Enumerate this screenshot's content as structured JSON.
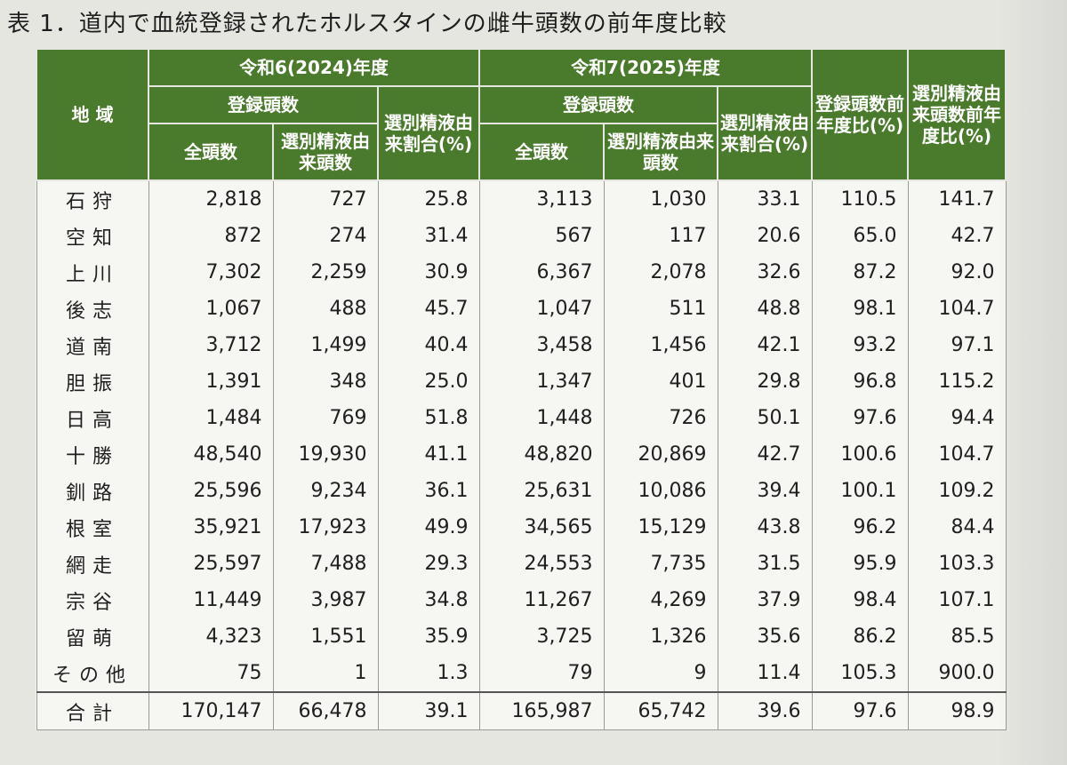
{
  "title": "表 1．道内で血統登録されたホルスタインの雌牛頭数の前年度比較",
  "headers": {
    "region": "地 域",
    "year1": "令和6(2024)年度",
    "year2": "令和7(2025)年度",
    "registered": "登録頭数",
    "total_head": "全頭数",
    "sexed_head": "選別精液由来頭数",
    "sexed_ratio": "選別精液由来割合(%)",
    "reg_yoy": "登録頭数前年度比(%)",
    "sexed_yoy": "選別精液由来頭数前年度比(%)"
  },
  "rows": [
    {
      "region": "石狩",
      "t24": "2,818",
      "s24": "727",
      "r24": "25.8",
      "t25": "3,113",
      "s25": "1,030",
      "r25": "33.1",
      "ry": "110.5",
      "sy": "141.7"
    },
    {
      "region": "空知",
      "t24": "872",
      "s24": "274",
      "r24": "31.4",
      "t25": "567",
      "s25": "117",
      "r25": "20.6",
      "ry": "65.0",
      "sy": "42.7"
    },
    {
      "region": "上川",
      "t24": "7,302",
      "s24": "2,259",
      "r24": "30.9",
      "t25": "6,367",
      "s25": "2,078",
      "r25": "32.6",
      "ry": "87.2",
      "sy": "92.0"
    },
    {
      "region": "後志",
      "t24": "1,067",
      "s24": "488",
      "r24": "45.7",
      "t25": "1,047",
      "s25": "511",
      "r25": "48.8",
      "ry": "98.1",
      "sy": "104.7"
    },
    {
      "region": "道南",
      "t24": "3,712",
      "s24": "1,499",
      "r24": "40.4",
      "t25": "3,458",
      "s25": "1,456",
      "r25": "42.1",
      "ry": "93.2",
      "sy": "97.1"
    },
    {
      "region": "胆振",
      "t24": "1,391",
      "s24": "348",
      "r24": "25.0",
      "t25": "1,347",
      "s25": "401",
      "r25": "29.8",
      "ry": "96.8",
      "sy": "115.2"
    },
    {
      "region": "日高",
      "t24": "1,484",
      "s24": "769",
      "r24": "51.8",
      "t25": "1,448",
      "s25": "726",
      "r25": "50.1",
      "ry": "97.6",
      "sy": "94.4"
    },
    {
      "region": "十勝",
      "t24": "48,540",
      "s24": "19,930",
      "r24": "41.1",
      "t25": "48,820",
      "s25": "20,869",
      "r25": "42.7",
      "ry": "100.6",
      "sy": "104.7"
    },
    {
      "region": "釧路",
      "t24": "25,596",
      "s24": "9,234",
      "r24": "36.1",
      "t25": "25,631",
      "s25": "10,086",
      "r25": "39.4",
      "ry": "100.1",
      "sy": "109.2"
    },
    {
      "region": "根室",
      "t24": "35,921",
      "s24": "17,923",
      "r24": "49.9",
      "t25": "34,565",
      "s25": "15,129",
      "r25": "43.8",
      "ry": "96.2",
      "sy": "84.4"
    },
    {
      "region": "網走",
      "t24": "25,597",
      "s24": "7,488",
      "r24": "29.3",
      "t25": "24,553",
      "s25": "7,735",
      "r25": "31.5",
      "ry": "95.9",
      "sy": "103.3"
    },
    {
      "region": "宗谷",
      "t24": "11,449",
      "s24": "3,987",
      "r24": "34.8",
      "t25": "11,267",
      "s25": "4,269",
      "r25": "37.9",
      "ry": "98.4",
      "sy": "107.1"
    },
    {
      "region": "留萌",
      "t24": "4,323",
      "s24": "1,551",
      "r24": "35.9",
      "t25": "3,725",
      "s25": "1,326",
      "r25": "35.6",
      "ry": "86.2",
      "sy": "85.5"
    },
    {
      "region": "その他",
      "t24": "75",
      "s24": "1",
      "r24": "1.3",
      "t25": "79",
      "s25": "9",
      "r25": "11.4",
      "ry": "105.3",
      "sy": "900.0"
    }
  ],
  "total": {
    "region": "合計",
    "t24": "170,147",
    "s24": "66,478",
    "r24": "39.1",
    "t25": "165,987",
    "s25": "65,742",
    "r25": "39.6",
    "ry": "97.6",
    "sy": "98.9"
  },
  "colors": {
    "header_green": "#4a7a2c",
    "header_text": "#ffffff",
    "body_bg": "#f6f6f2",
    "page_bg": "#e6e6e1"
  }
}
